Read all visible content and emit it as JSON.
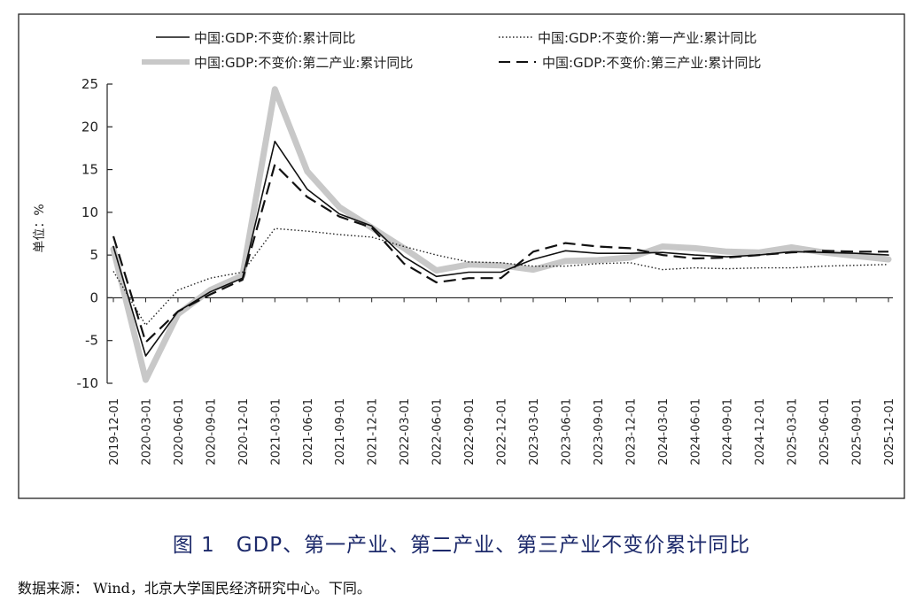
{
  "figure": {
    "caption": "图 1　GDP、第一产业、第二产业、第三产业不变价累计同比",
    "source": "数据来源： Wind，北京大学国民经济研究中心。下同。"
  },
  "chart_data": {
    "type": "line",
    "title": "",
    "xlabel": "",
    "ylabel": "单位：%",
    "ylim": [
      -10,
      25
    ],
    "yticks": [
      -10,
      -5,
      0,
      5,
      10,
      15,
      20,
      25
    ],
    "grid": false,
    "legend_position": "top",
    "categories": [
      "2019-12-01",
      "2020-03-01",
      "2020-06-01",
      "2020-09-01",
      "2020-12-01",
      "2021-03-01",
      "2021-06-01",
      "2021-09-01",
      "2021-12-01",
      "2022-03-01",
      "2022-06-01",
      "2022-09-01",
      "2022-12-01",
      "2023-03-01",
      "2023-06-01",
      "2023-09-01",
      "2023-12-01",
      "2024-03-01",
      "2024-06-01",
      "2024-09-01",
      "2024-12-01",
      "2025-03-01",
      "2025-06-01",
      "2025-09-01",
      "2025-12-01"
    ],
    "series": [
      {
        "name": "中国:GDP:不变价:累计同比",
        "style": "solid-thin",
        "color": "#111111",
        "values": [
          6.0,
          -6.8,
          -1.6,
          0.7,
          2.3,
          18.3,
          12.7,
          9.8,
          8.4,
          4.8,
          2.5,
          3.0,
          3.0,
          4.5,
          5.5,
          5.2,
          5.2,
          5.3,
          5.0,
          4.8,
          5.0,
          5.4,
          5.3,
          5.2,
          5.0
        ]
      },
      {
        "name": "中国:GDP:不变价:第一产业:累计同比",
        "style": "dotted",
        "color": "#222222",
        "values": [
          3.1,
          -3.2,
          0.9,
          2.3,
          3.0,
          8.1,
          7.8,
          7.4,
          7.1,
          6.0,
          5.0,
          4.2,
          4.1,
          3.7,
          3.7,
          4.0,
          4.1,
          3.3,
          3.5,
          3.4,
          3.5,
          3.5,
          3.7,
          3.8,
          3.9
        ]
      },
      {
        "name": "中国:GDP:不变价:第二产业:累计同比",
        "style": "thick-gray",
        "color": "#c8c8c8",
        "values": [
          5.7,
          -9.6,
          -1.9,
          0.9,
          2.6,
          24.4,
          14.8,
          10.6,
          8.2,
          5.8,
          3.2,
          3.9,
          3.8,
          3.3,
          4.3,
          4.4,
          4.7,
          6.0,
          5.8,
          5.4,
          5.3,
          5.9,
          5.3,
          4.9,
          4.5
        ]
      },
      {
        "name": "中国:GDP:不变价:第三产业:累计同比",
        "style": "dashed",
        "color": "#111111",
        "values": [
          7.2,
          -5.2,
          -1.6,
          0.4,
          2.1,
          15.6,
          11.8,
          9.5,
          8.2,
          4.0,
          1.8,
          2.3,
          2.3,
          5.4,
          6.4,
          6.0,
          5.8,
          5.0,
          4.6,
          4.7,
          5.0,
          5.3,
          5.5,
          5.4,
          5.4
        ]
      }
    ]
  }
}
